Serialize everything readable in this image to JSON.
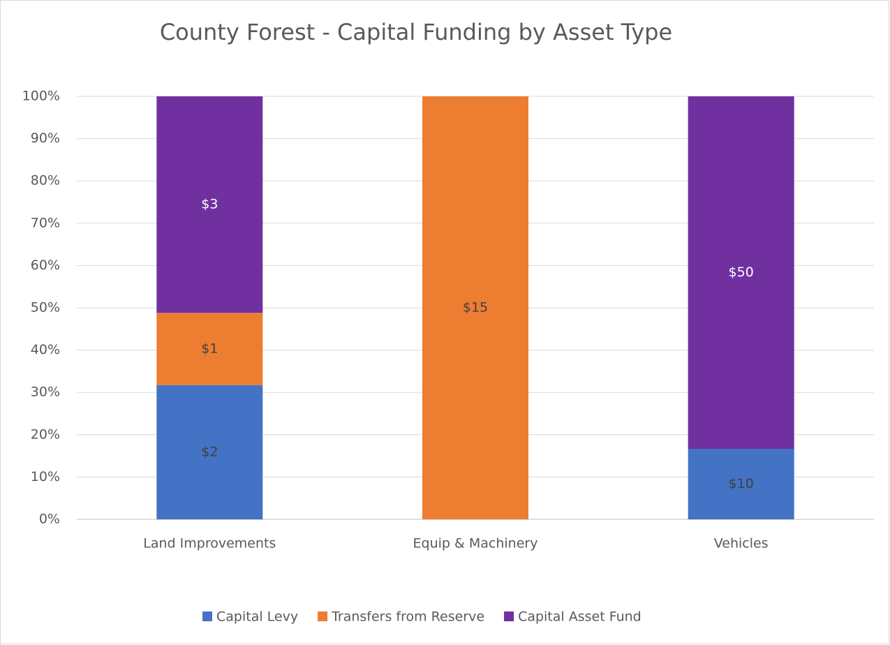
{
  "chart_data": {
    "type": "bar",
    "stacked": "percent",
    "title": "County Forest - Capital Funding by Asset Type",
    "categories": [
      "Land Improvements",
      "Equip & Machinery",
      "Vehicles"
    ],
    "series": [
      {
        "name": "Capital Levy",
        "color": "#4472c4",
        "values": [
          1.86,
          0,
          10
        ],
        "value_labels": [
          "$2",
          null,
          "$10"
        ]
      },
      {
        "name": "Transfers from Reserve",
        "color": "#ed7d31",
        "values": [
          1.0,
          15,
          0
        ],
        "value_labels": [
          "$1",
          "$15",
          null
        ]
      },
      {
        "name": "Capital Asset Fund",
        "color": "#7030a0",
        "values": [
          3.0,
          0,
          50
        ],
        "value_labels": [
          "$3",
          null,
          "$50"
        ]
      }
    ],
    "ylim": [
      0,
      100
    ],
    "yticks": [
      {
        "value": 0,
        "label": "0%"
      },
      {
        "value": 10,
        "label": "10%"
      },
      {
        "value": 20,
        "label": "20%"
      },
      {
        "value": 30,
        "label": "30%"
      },
      {
        "value": 40,
        "label": "40%"
      },
      {
        "value": 50,
        "label": "50%"
      },
      {
        "value": 60,
        "label": "60%"
      },
      {
        "value": 70,
        "label": "70%"
      },
      {
        "value": 80,
        "label": "80%"
      },
      {
        "value": 90,
        "label": "90%"
      },
      {
        "value": 100,
        "label": "100%"
      }
    ],
    "grid": true,
    "legend": "bottom"
  }
}
